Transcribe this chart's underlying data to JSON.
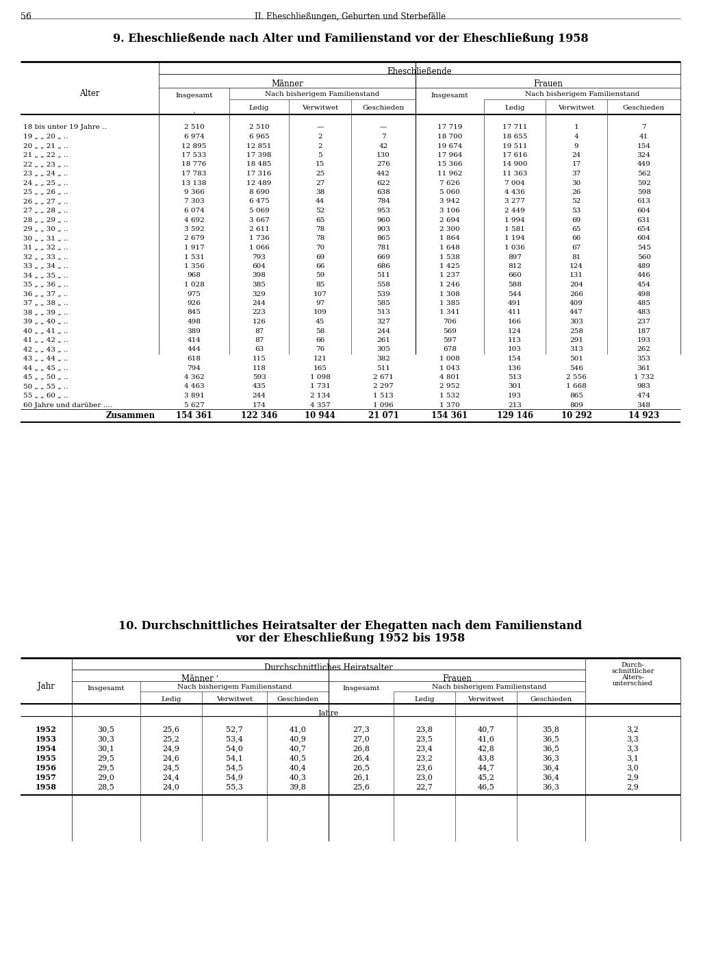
{
  "page_number": "56",
  "header": "II. Eheschließungen, Geburten und Sterbefälle",
  "table1_title": "9. Eheschließende nach Alter und Familienstand vor der Eheschließung 1958",
  "table1_top_header": "Eheschließende",
  "table1_maenner": "Männer",
  "table1_frauen": "Frauen",
  "table1_nach": "Nach bisherigem Familienstand",
  "table1_insgesamt": "Insgesamt",
  "table1_alter": "Alter",
  "table1_ledig": "Ledig",
  "table1_verwitwet": "Verwitwet",
  "table1_geschieden": "Geschieden",
  "table1_zusammen": "Zusammen",
  "table1_rows": [
    [
      "18 bis unter 19 Jahre ..",
      "2 510",
      "2 510",
      "—",
      "—",
      "17 719",
      "17 711",
      "1",
      "7"
    ],
    [
      "19 „ „ 20 „ ..",
      "6 974",
      "6 965",
      "2",
      "7",
      "18 700",
      "18 655",
      "4",
      "41"
    ],
    [
      "20 „ „ 21 „ ..",
      "12 895",
      "12 851",
      "2",
      "42",
      "19 674",
      "19 511",
      "9",
      "154"
    ],
    [
      "21 „ „ 22 „ ..",
      "17 533",
      "17 398",
      "5",
      "130",
      "17 964",
      "17 616",
      "24",
      "324"
    ],
    [
      "22 „ „ 23 „ ..",
      "18 776",
      "18 485",
      "15",
      "276",
      "15 366",
      "14 900",
      "17",
      "449"
    ],
    [
      "23 „ „ 24 „ ..",
      "17 783",
      "17 316",
      "25",
      "442",
      "11 962",
      "11 363",
      "37",
      "562"
    ],
    [
      "24 „ „ 25 „ ..",
      "13 138",
      "12 489",
      "27",
      "622",
      "7 626",
      "7 004",
      "30",
      "592"
    ],
    [
      "25 „ „ 26 „ ..",
      "9 366",
      "8 690",
      "38",
      "638",
      "5 060",
      "4 436",
      "26",
      "598"
    ],
    [
      "26 „ „ 27 „ ..",
      "7 303",
      "6 475",
      "44",
      "784",
      "3 942",
      "3 277",
      "52",
      "613"
    ],
    [
      "27 „ „ 28 „ ..",
      "6 074",
      "5 069",
      "52",
      "953",
      "3 106",
      "2 449",
      "53",
      "604"
    ],
    [
      "28 „ „ 29 „ ..",
      "4 692",
      "3 667",
      "65",
      "960",
      "2 694",
      "1 994",
      "69",
      "631"
    ],
    [
      "29 „ „ 30 „ ..",
      "3 592",
      "2 611",
      "78",
      "903",
      "2 300",
      "1 581",
      "65",
      "654"
    ],
    [
      "30 „ „ 31 „ ..",
      "2 679",
      "1 736",
      "78",
      "865",
      "1 864",
      "1 194",
      "66",
      "604"
    ],
    [
      "31 „ „ 32 „ ..",
      "1 917",
      "1 066",
      "70",
      "781",
      "1 648",
      "1 036",
      "67",
      "545"
    ],
    [
      "32 „ „ 33 „ ..",
      "1 531",
      "793",
      "69",
      "669",
      "1 538",
      "897",
      "81",
      "560"
    ],
    [
      "33 „ „ 34 „ ..",
      "1 356",
      "604",
      "66",
      "686",
      "1 425",
      "812",
      "124",
      "489"
    ],
    [
      "34 „ „ 35 „ ..",
      "968",
      "398",
      "59",
      "511",
      "1 237",
      "660",
      "131",
      "446"
    ],
    [
      "35 „ „ 36 „ ..",
      "1 028",
      "385",
      "85",
      "558",
      "1 246",
      "588",
      "204",
      "454"
    ],
    [
      "36 „ „ 37 „ ..",
      "975",
      "329",
      "107",
      "539",
      "1 308",
      "544",
      "266",
      "498"
    ],
    [
      "37 „ „ 38 „ ..",
      "926",
      "244",
      "97",
      "585",
      "1 385",
      "491",
      "409",
      "485"
    ],
    [
      "38 „ „ 39 „ ..",
      "845",
      "223",
      "109",
      "513",
      "1 341",
      "411",
      "447",
      "483"
    ],
    [
      "39 „ „ 40 „ ..",
      "498",
      "126",
      "45",
      "327",
      "706",
      "166",
      "303",
      "237"
    ],
    [
      "40 „ „ 41 „ ..",
      "389",
      "87",
      "58",
      "244",
      "569",
      "124",
      "258",
      "187"
    ],
    [
      "41 „ „ 42 „ ..",
      "414",
      "87",
      "66",
      "261",
      "597",
      "113",
      "291",
      "193"
    ],
    [
      "42 „ „ 43 „ ..",
      "444",
      "63",
      "76",
      "305",
      "678",
      "103",
      "313",
      "262"
    ],
    [
      "43 „ „ 44 „ ..",
      "618",
      "115",
      "121",
      "382",
      "1 008",
      "154",
      "501",
      "353"
    ],
    [
      "44 „ „ 45 „ ..",
      "794",
      "118",
      "165",
      "511",
      "1 043",
      "136",
      "546",
      "361"
    ],
    [
      "45 „ „ 50 „ ..",
      "4 362",
      "593",
      "1 098",
      "2 671",
      "4 801",
      "513",
      "2 556",
      "1 732"
    ],
    [
      "50 „ „ 55 „ ..",
      "4 463",
      "435",
      "1 731",
      "2 297",
      "2 952",
      "301",
      "1 668",
      "983"
    ],
    [
      "55 „ „ 60 „ ..",
      "3 891",
      "244",
      "2 134",
      "1 513",
      "1 532",
      "193",
      "865",
      "474"
    ],
    [
      "60 Jahre und darüber ....",
      "5 627",
      "174",
      "4 357",
      "1 096",
      "1 370",
      "213",
      "809",
      "348"
    ],
    [
      "Zusammen",
      "154 361",
      "122 346",
      "10 944",
      "21 071",
      "154 361",
      "129 146",
      "10 292",
      "14 923"
    ]
  ],
  "table2_title_line1": "10. Durchschnittliches Heiratsalter der Ehegatten nach dem Familienstand",
  "table2_title_line2": "vor der Eheschließung 1952 bis 1958",
  "table2_dha": "Durchschnittliches Heiratsalter",
  "table2_maenner": "Männer ‘",
  "table2_frauen": "Frauen",
  "table2_nach": "Nach bisherigem Familienstand",
  "table2_insgesamt": "Insgesamt",
  "table2_jahr": "Jahr",
  "table2_ledig": "Ledig",
  "table2_verwitwet": "Verwitwet",
  "table2_geschieden": "Geschieden",
  "table2_jahre": "Jahre",
  "table2_durch": "Durch-",
  "table2_schnittlicher": "schnittlicher",
  "table2_alters": "Alters-",
  "table2_unterschied": "unterschied",
  "table2_rows": [
    [
      "1952",
      "30,5",
      "25,6",
      "52,7",
      "41,0",
      "27,3",
      "23,8",
      "40,7",
      "35,8",
      "3,2"
    ],
    [
      "1953",
      "30,3",
      "25,2",
      "53,4",
      "40,9",
      "27,0",
      "23,5",
      "41,6",
      "36,5",
      "3,3"
    ],
    [
      "1954",
      "30,1",
      "24,9",
      "54,0",
      "40,7",
      "26,8",
      "23,4",
      "42,8",
      "36,5",
      "3,3"
    ],
    [
      "1955",
      "29,5",
      "24,6",
      "54,1",
      "40,5",
      "26,4",
      "23,2",
      "43,8",
      "36,3",
      "3,1"
    ],
    [
      "1956",
      "29,5",
      "24,5",
      "54,5",
      "40,4",
      "26,5",
      "23,6",
      "44,7",
      "36,4",
      "3,0"
    ],
    [
      "1957",
      "29,0",
      "24,4",
      "54,9",
      "40,3",
      "26,1",
      "23,0",
      "45,2",
      "36,4",
      "2,9"
    ],
    [
      "1958",
      "28,5",
      "24,0",
      "55,3",
      "39,8",
      "25,6",
      "22,7",
      "46,5",
      "36,3",
      "2,9"
    ]
  ]
}
